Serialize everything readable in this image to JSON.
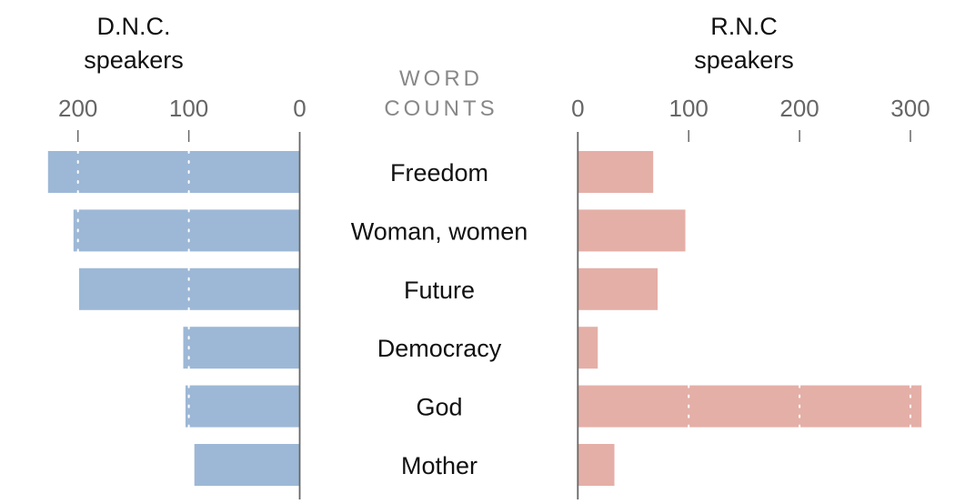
{
  "chart_data": {
    "type": "bar",
    "center_label": [
      "WORD",
      "COUNTS"
    ],
    "categories": [
      "Freedom",
      "Woman, women",
      "Future",
      "Democracy",
      "God",
      "Mother"
    ],
    "series": [
      {
        "name": "D.N.C. speakers",
        "title_lines": [
          "D.N.C.",
          "speakers"
        ],
        "color": "#9db8d6",
        "values": [
          227,
          204,
          199,
          105,
          103,
          95
        ],
        "ticks": [
          200,
          100,
          0
        ],
        "direction": "left"
      },
      {
        "name": "R.N.C speakers",
        "title_lines": [
          "R.N.C",
          "speakers"
        ],
        "color": "#e4afa7",
        "values": [
          68,
          97,
          72,
          18,
          310,
          33
        ],
        "ticks": [
          0,
          100,
          200,
          300
        ],
        "direction": "right"
      }
    ],
    "grid": "dotted white at tick values inside bars"
  }
}
